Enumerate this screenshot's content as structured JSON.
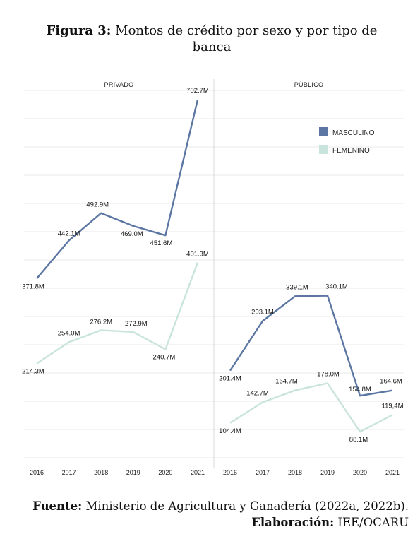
{
  "title": {
    "prefix": "Figura 3:",
    "text": "Montos de crédito por sexo y por tipo de banca"
  },
  "colors": {
    "masculino": "#5b76a2",
    "femenino": "#c8e4dc",
    "grid": "#e8e8e8",
    "divider": "#d8d8d8"
  },
  "chart_data": [
    {
      "type": "line",
      "panel": "PRIVADO",
      "x": [
        "2016",
        "2017",
        "2018",
        "2019",
        "2020",
        "2021"
      ],
      "series": [
        {
          "name": "MASCULINO",
          "values": [
            371.8,
            442.1,
            492.9,
            469.0,
            451.6,
            702.7
          ],
          "labels": [
            "371.8M",
            "442.1M",
            "492.9M",
            "469.0M",
            "451.6M",
            "702.7M"
          ]
        },
        {
          "name": "FEMENINO",
          "values": [
            214.3,
            254.0,
            276.2,
            272.9,
            240.7,
            401.3
          ],
          "labels": [
            "214.3M",
            "254.0M",
            "276.2M",
            "272.9M",
            "240.7M",
            "401.3M"
          ]
        }
      ],
      "ylim": [
        40,
        720
      ],
      "grid": true
    },
    {
      "type": "line",
      "panel": "PÚBLICO",
      "x": [
        "2016",
        "2017",
        "2018",
        "2019",
        "2020",
        "2021"
      ],
      "series": [
        {
          "name": "MASCULINO",
          "values": [
            201.4,
            293.1,
            339.1,
            340.1,
            154.8,
            164.6
          ],
          "labels": [
            "201.4M",
            "293.1M",
            "339.1M",
            "340.1M",
            "154.8M",
            "164.6M"
          ]
        },
        {
          "name": "FEMENINO",
          "values": [
            104.4,
            142.7,
            164.7,
            178.0,
            88.1,
            119.4
          ],
          "labels": [
            "104.4M",
            "142.7M",
            "164.7M",
            "178.0M",
            "88.1M",
            "119,4M"
          ]
        }
      ],
      "ylim": [
        40,
        720
      ],
      "grid": true
    }
  ],
  "legend": {
    "placement": "top-right",
    "items": [
      "MASCULINO",
      "FEMENINO"
    ]
  },
  "footer": {
    "source_label": "Fuente:",
    "source_text": "Ministerio de Agricultura y Ganadería (2022a, 2022b).",
    "credit_label": "Elaboración:",
    "credit_text": "IEE/OCARU"
  }
}
